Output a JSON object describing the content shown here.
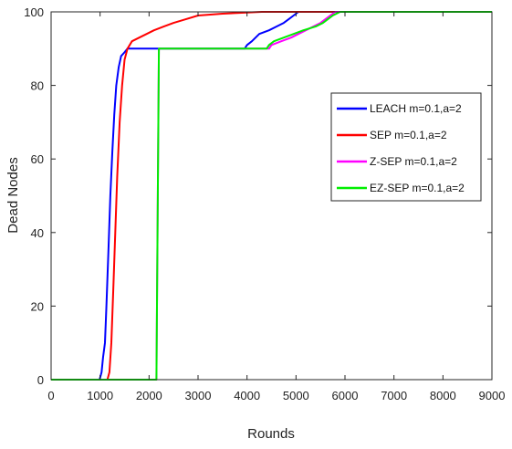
{
  "chart_data": {
    "type": "line",
    "title": "",
    "xlabel": "Rounds",
    "ylabel": "Dead Nodes",
    "xlim": [
      0,
      9000
    ],
    "ylim": [
      0,
      100
    ],
    "xticks": [
      0,
      1000,
      2000,
      3000,
      4000,
      5000,
      6000,
      7000,
      8000,
      9000
    ],
    "yticks": [
      0,
      20,
      40,
      60,
      80,
      100
    ],
    "grid": false,
    "legend_position": "right",
    "series": [
      {
        "name": "LEACH  m=0.1,a=2",
        "color": "#0000ff",
        "points": [
          [
            0,
            0
          ],
          [
            990,
            0
          ],
          [
            1030,
            2
          ],
          [
            1060,
            6
          ],
          [
            1100,
            10
          ],
          [
            1130,
            20
          ],
          [
            1170,
            35
          ],
          [
            1210,
            50
          ],
          [
            1250,
            62
          ],
          [
            1290,
            72
          ],
          [
            1330,
            80
          ],
          [
            1380,
            85
          ],
          [
            1430,
            88
          ],
          [
            1500,
            89
          ],
          [
            1560,
            90
          ],
          [
            2200,
            90
          ],
          [
            3950,
            90
          ],
          [
            4000,
            91
          ],
          [
            4100,
            92
          ],
          [
            4250,
            94
          ],
          [
            4450,
            95
          ],
          [
            4600,
            96
          ],
          [
            4750,
            97
          ],
          [
            4850,
            98
          ],
          [
            4950,
            99
          ],
          [
            5050,
            100
          ],
          [
            9000,
            100
          ]
        ]
      },
      {
        "name": "SEP  m=0.1,a=2",
        "color": "#ff0000",
        "points": [
          [
            0,
            0
          ],
          [
            1150,
            0
          ],
          [
            1190,
            2
          ],
          [
            1230,
            10
          ],
          [
            1270,
            25
          ],
          [
            1310,
            40
          ],
          [
            1350,
            55
          ],
          [
            1400,
            70
          ],
          [
            1450,
            80
          ],
          [
            1500,
            87
          ],
          [
            1560,
            90
          ],
          [
            1650,
            92
          ],
          [
            1800,
            93
          ],
          [
            1950,
            94
          ],
          [
            2100,
            95
          ],
          [
            2300,
            96
          ],
          [
            2500,
            97
          ],
          [
            2750,
            98
          ],
          [
            3000,
            99
          ],
          [
            3500,
            99.5
          ],
          [
            4300,
            100
          ],
          [
            9000,
            100
          ]
        ]
      },
      {
        "name": "Z-SEP  m=0.1,a=2",
        "color": "#ff00ff",
        "points": [
          [
            0,
            0
          ],
          [
            2150,
            0
          ],
          [
            2200,
            90
          ],
          [
            4450,
            90
          ],
          [
            4500,
            91
          ],
          [
            4700,
            92
          ],
          [
            4900,
            93
          ],
          [
            5050,
            94
          ],
          [
            5200,
            95
          ],
          [
            5350,
            96
          ],
          [
            5500,
            97
          ],
          [
            5600,
            98
          ],
          [
            5700,
            99
          ],
          [
            5800,
            100
          ],
          [
            9000,
            100
          ]
        ]
      },
      {
        "name": "EZ-SEP  m=0.1,a=2",
        "color": "#00ee00",
        "points": [
          [
            0,
            0
          ],
          [
            2150,
            0
          ],
          [
            2200,
            90
          ],
          [
            4400,
            90
          ],
          [
            4450,
            91
          ],
          [
            4550,
            92
          ],
          [
            4750,
            93
          ],
          [
            4950,
            94
          ],
          [
            5150,
            95
          ],
          [
            5400,
            96
          ],
          [
            5550,
            97
          ],
          [
            5650,
            98
          ],
          [
            5750,
            99
          ],
          [
            5900,
            100
          ],
          [
            9000,
            100
          ]
        ]
      }
    ]
  }
}
